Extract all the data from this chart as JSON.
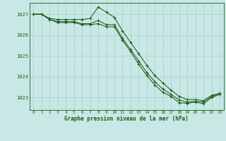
{
  "x": [
    0,
    1,
    2,
    3,
    4,
    5,
    6,
    7,
    8,
    9,
    10,
    11,
    12,
    13,
    14,
    15,
    16,
    17,
    18,
    19,
    20,
    21,
    22,
    23
  ],
  "line1": [
    1027.0,
    1027.0,
    1026.8,
    1026.75,
    1026.75,
    1026.75,
    1026.75,
    1026.8,
    1027.35,
    1027.1,
    1026.85,
    1026.2,
    1025.65,
    1025.1,
    1024.55,
    1024.05,
    1023.7,
    1023.35,
    1023.05,
    1022.9,
    1022.9,
    1022.85,
    1023.1,
    1023.2
  ],
  "line2": [
    1027.0,
    1027.0,
    1026.75,
    1026.65,
    1026.65,
    1026.65,
    1026.55,
    1026.55,
    1026.7,
    1026.5,
    1026.5,
    1025.85,
    1025.3,
    1024.75,
    1024.2,
    1023.75,
    1023.4,
    1023.15,
    1022.88,
    1022.78,
    1022.82,
    1022.78,
    1023.05,
    1023.2
  ],
  "line3": [
    1027.0,
    1027.0,
    1026.75,
    1026.6,
    1026.6,
    1026.6,
    1026.5,
    1026.5,
    1026.55,
    1026.4,
    1026.4,
    1025.75,
    1025.2,
    1024.6,
    1024.05,
    1023.6,
    1023.25,
    1023.05,
    1022.75,
    1022.72,
    1022.78,
    1022.7,
    1023.0,
    1023.15
  ],
  "bg_color": "#c8e8e5",
  "grid_color": "#aacfcc",
  "line_color": "#1a5e1a",
  "ylabel_ticks": [
    1023,
    1024,
    1025,
    1026,
    1027
  ],
  "xlabel": "Graphe pression niveau de la mer (hPa)",
  "ylim": [
    1022.4,
    1027.55
  ],
  "xlim": [
    -0.5,
    23.5
  ],
  "figsize": [
    3.2,
    2.0
  ],
  "dpi": 100
}
